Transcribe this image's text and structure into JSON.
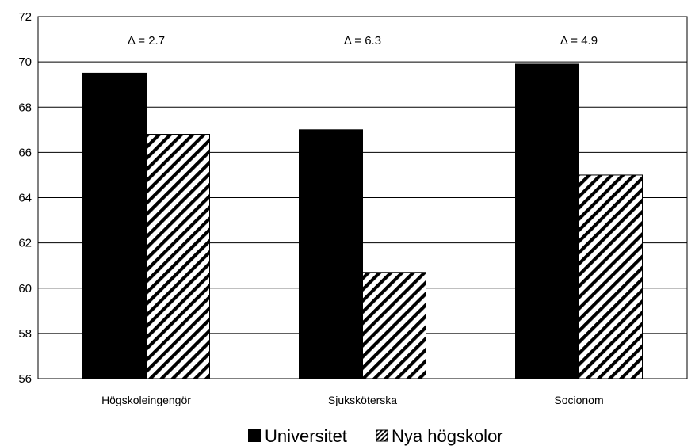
{
  "chart_data": {
    "type": "bar",
    "title": "",
    "xlabel": "",
    "ylabel": "",
    "categories": [
      "Högskoleingengör",
      "Sjuksköterska",
      "Socionom"
    ],
    "series": [
      {
        "name": "Universitet",
        "values": [
          69.5,
          67.0,
          69.9
        ],
        "fill": "solid"
      },
      {
        "name": "Nya högskolor",
        "values": [
          66.8,
          60.7,
          65.0
        ],
        "fill": "hatched"
      }
    ],
    "annotations": [
      "Δ = 2.7",
      "Δ = 6.3",
      "Δ = 4.9"
    ],
    "ylim": [
      56,
      72
    ],
    "yticks": [
      "56",
      "58",
      "60",
      "62",
      "64",
      "66",
      "68",
      "70",
      "72"
    ],
    "grid": true,
    "legend": "bottom-center",
    "colors": {
      "bar": "#000000",
      "background": "#ffffff",
      "grid": "#000000"
    }
  }
}
